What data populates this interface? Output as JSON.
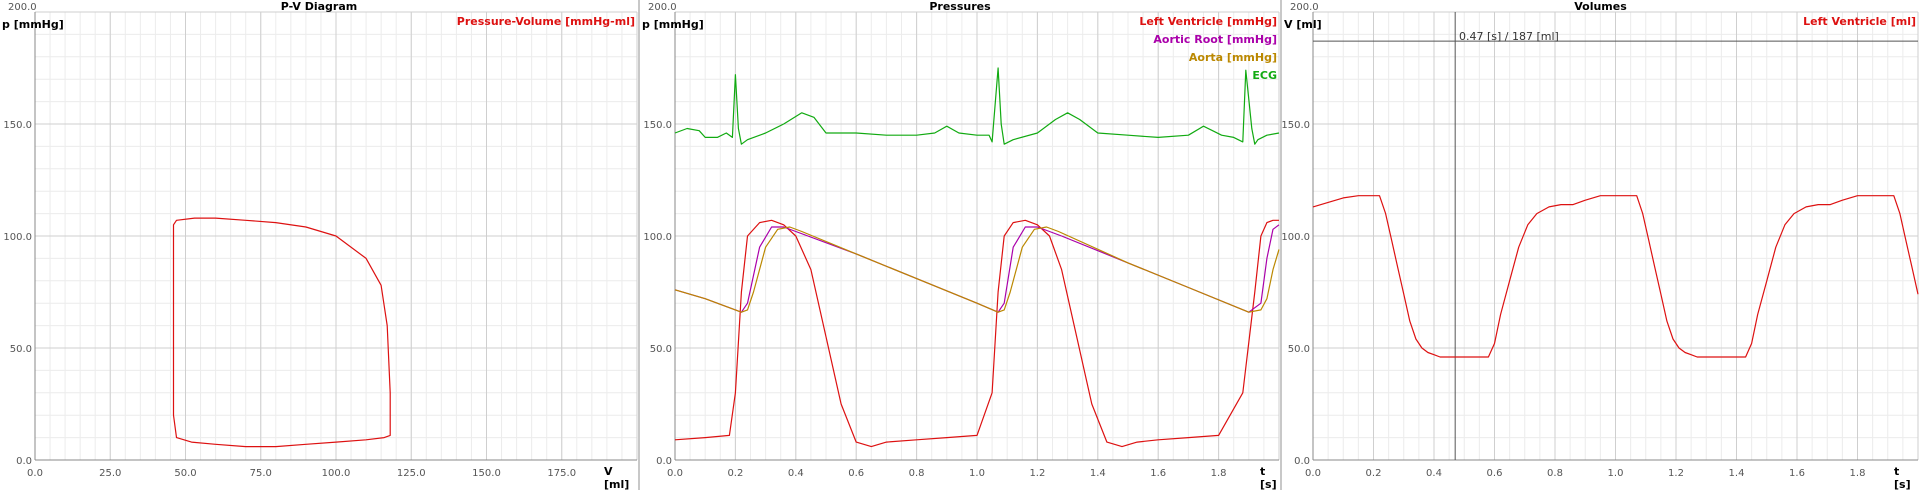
{
  "panels": [
    {
      "title": "P-V Diagram",
      "ylabel": "p [mmHg]",
      "xlabel": "V [ml]",
      "ymax_label": "200.0",
      "legend": [
        {
          "label": "Pressure-Volume [mmHg-ml]",
          "color": "#dd1111"
        }
      ]
    },
    {
      "title": "Pressures",
      "ylabel": "p [mmHg]",
      "xlabel": "t [s]",
      "ymax_label": "200.0",
      "legend": [
        {
          "label": "Left Ventricle [mmHg]",
          "color": "#dd1111"
        },
        {
          "label": "Aortic Root [mmHg]",
          "color": "#aa00aa"
        },
        {
          "label": "Aorta [mmHg]",
          "color": "#bb8800"
        },
        {
          "label": "ECG",
          "color": "#11aa11"
        }
      ]
    },
    {
      "title": "Volumes",
      "ylabel": "V [ml]",
      "xlabel": "t [s]",
      "ymax_label": "200.0",
      "legend": [
        {
          "label": "Left Ventricle [ml]",
          "color": "#dd1111"
        }
      ],
      "cursor_label": "0.47 [s] / 187 [ml]"
    }
  ],
  "chart_data": [
    {
      "type": "line",
      "title": "P-V Diagram",
      "xlabel": "V [ml]",
      "ylabel": "p [mmHg]",
      "xlim": [
        0,
        200
      ],
      "ylim": [
        0,
        200
      ],
      "xticks": [
        "0.0",
        "25.0",
        "50.0",
        "75.0",
        "100.0",
        "125.0",
        "150.0",
        "175.0"
      ],
      "yticks": [
        "0.0",
        "50.0",
        "100.0",
        "150.0"
      ],
      "grid": true,
      "legend_position": "top-right",
      "series": [
        {
          "name": "Pressure-Volume [mmHg-ml]",
          "color": "#dd1111",
          "x": [
            118,
            118,
            117,
            115,
            110,
            100,
            90,
            80,
            70,
            60,
            53,
            47,
            46,
            46,
            46,
            47,
            52,
            60,
            70,
            80,
            90,
            100,
            110,
            116,
            118,
            118
          ],
          "y": [
            12,
            30,
            60,
            78,
            90,
            100,
            104,
            106,
            107,
            108,
            108,
            107,
            105,
            60,
            20,
            10,
            8,
            7,
            6,
            6,
            7,
            8,
            9,
            10,
            11,
            12
          ]
        }
      ]
    },
    {
      "type": "line",
      "title": "Pressures",
      "xlabel": "t [s]",
      "ylabel": "p [mmHg]",
      "xlim": [
        0,
        2
      ],
      "ylim": [
        0,
        200
      ],
      "xticks": [
        "0.0",
        "0.2",
        "0.4",
        "0.6",
        "0.8",
        "1.0",
        "1.2",
        "1.4",
        "1.6",
        "1.8"
      ],
      "yticks": [
        "0.0",
        "50.0",
        "100.0",
        "150.0"
      ],
      "grid": true,
      "legend_position": "top-right",
      "series": [
        {
          "name": "Left Ventricle [mmHg]",
          "color": "#dd1111",
          "x": [
            0,
            0.1,
            0.18,
            0.2,
            0.22,
            0.24,
            0.28,
            0.32,
            0.36,
            0.4,
            0.45,
            0.5,
            0.55,
            0.6,
            0.65,
            0.7,
            0.8,
            0.9,
            1.0,
            1.05,
            1.07,
            1.09,
            1.12,
            1.16,
            1.2,
            1.24,
            1.28,
            1.33,
            1.38,
            1.43,
            1.48,
            1.53,
            1.6,
            1.7,
            1.8,
            1.88,
            1.92,
            1.94,
            1.96,
            1.98,
            2.0
          ],
          "y": [
            9,
            10,
            11,
            30,
            75,
            100,
            106,
            107,
            105,
            100,
            85,
            55,
            25,
            8,
            6,
            8,
            9,
            10,
            11,
            30,
            75,
            100,
            106,
            107,
            105,
            100,
            85,
            55,
            25,
            8,
            6,
            8,
            9,
            10,
            11,
            30,
            75,
            100,
            106,
            107,
            107
          ]
        },
        {
          "name": "Aortic Root [mmHg]",
          "color": "#aa00aa",
          "x": [
            0,
            0.1,
            0.2,
            0.22,
            0.24,
            0.28,
            0.32,
            0.36,
            0.4,
            0.6,
            0.8,
            1.0,
            1.07,
            1.09,
            1.12,
            1.16,
            1.2,
            1.24,
            1.28,
            1.5,
            1.7,
            1.9,
            1.94,
            1.96,
            1.98,
            2.0
          ],
          "y": [
            76,
            72,
            67,
            66,
            70,
            95,
            104,
            104,
            102,
            92,
            81,
            70,
            66,
            70,
            95,
            104,
            104,
            102,
            100,
            88,
            77,
            66,
            70,
            90,
            103,
            105
          ]
        },
        {
          "name": "Aorta [mmHg]",
          "color": "#bb8800",
          "x": [
            0,
            0.1,
            0.2,
            0.22,
            0.24,
            0.26,
            0.3,
            0.34,
            0.38,
            0.42,
            0.6,
            0.8,
            1.0,
            1.07,
            1.09,
            1.11,
            1.15,
            1.19,
            1.23,
            1.27,
            1.5,
            1.7,
            1.9,
            1.94,
            1.96,
            1.98,
            2.0
          ],
          "y": [
            76,
            72,
            67,
            66,
            67,
            75,
            95,
            103,
            104,
            102,
            92,
            81,
            70,
            66,
            67,
            75,
            95,
            103,
            104,
            102,
            88,
            77,
            66,
            67,
            72,
            85,
            94
          ]
        },
        {
          "name": "ECG",
          "color": "#11aa11",
          "x": [
            0,
            0.04,
            0.08,
            0.1,
            0.14,
            0.17,
            0.19,
            0.2,
            0.21,
            0.22,
            0.24,
            0.3,
            0.36,
            0.42,
            0.46,
            0.5,
            0.6,
            0.7,
            0.8,
            0.86,
            0.9,
            0.94,
            1.0,
            1.04,
            1.05,
            1.07,
            1.08,
            1.09,
            1.12,
            1.2,
            1.26,
            1.3,
            1.34,
            1.4,
            1.5,
            1.6,
            1.7,
            1.75,
            1.78,
            1.81,
            1.85,
            1.88,
            1.89,
            1.91,
            1.92,
            1.93,
            1.96,
            2.0
          ],
          "y": [
            146,
            148,
            147,
            144,
            144,
            146,
            144,
            172,
            148,
            141,
            143,
            146,
            150,
            155,
            153,
            146,
            146,
            145,
            145,
            146,
            149,
            146,
            145,
            145,
            142,
            175,
            150,
            141,
            143,
            146,
            152,
            155,
            152,
            146,
            145,
            144,
            145,
            149,
            147,
            145,
            144,
            142,
            174,
            148,
            141,
            143,
            145,
            146
          ]
        }
      ]
    },
    {
      "type": "line",
      "title": "Volumes",
      "xlabel": "t [s]",
      "ylabel": "V [ml]",
      "xlim": [
        0,
        2
      ],
      "ylim": [
        0,
        200
      ],
      "xticks": [
        "0.0",
        "0.2",
        "0.4",
        "0.6",
        "0.8",
        "1.0",
        "1.2",
        "1.4",
        "1.6",
        "1.8"
      ],
      "yticks": [
        "0.0",
        "50.0",
        "100.0",
        "150.0"
      ],
      "grid": true,
      "legend_position": "top-right",
      "cursor": {
        "t": 0.47,
        "v": 187
      },
      "series": [
        {
          "name": "Left Ventricle [ml]",
          "color": "#dd1111",
          "x": [
            0,
            0.05,
            0.1,
            0.15,
            0.2,
            0.22,
            0.24,
            0.26,
            0.28,
            0.3,
            0.32,
            0.34,
            0.36,
            0.38,
            0.4,
            0.42,
            0.45,
            0.5,
            0.58,
            0.6,
            0.62,
            0.65,
            0.68,
            0.71,
            0.74,
            0.78,
            0.82,
            0.86,
            0.9,
            0.95,
            1.0,
            1.05,
            1.07,
            1.09,
            1.11,
            1.13,
            1.15,
            1.17,
            1.19,
            1.21,
            1.23,
            1.25,
            1.27,
            1.3,
            1.35,
            1.43,
            1.45,
            1.47,
            1.5,
            1.53,
            1.56,
            1.59,
            1.63,
            1.67,
            1.71,
            1.75,
            1.8,
            1.85,
            1.9,
            1.92,
            1.94,
            1.96,
            1.98,
            2.0
          ],
          "y": [
            113,
            115,
            117,
            118,
            118,
            118,
            110,
            98,
            86,
            74,
            62,
            54,
            50,
            48,
            47,
            46,
            46,
            46,
            46,
            52,
            65,
            80,
            95,
            105,
            110,
            113,
            114,
            114,
            116,
            118,
            118,
            118,
            118,
            110,
            98,
            86,
            74,
            62,
            54,
            50,
            48,
            47,
            46,
            46,
            46,
            46,
            52,
            65,
            80,
            95,
            105,
            110,
            113,
            114,
            114,
            116,
            118,
            118,
            118,
            118,
            110,
            98,
            86,
            74
          ]
        }
      ]
    }
  ]
}
